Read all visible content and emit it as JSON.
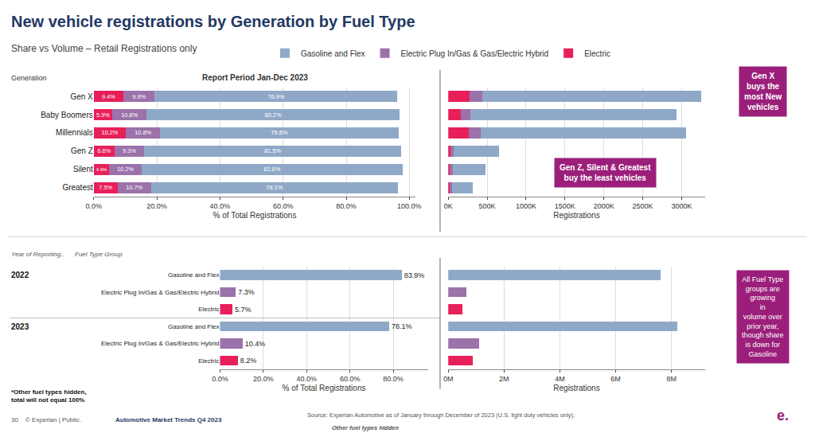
{
  "title": "New vehicle registrations by Generation by Fuel Type",
  "subtitle": "Share vs Volume – Retail Registrations only",
  "annotations": [
    "Gen X\nbuys the\nmost New\nvehicles",
    "Gen Z, Silent & Greatest\nbuy the least vehicles",
    "All Fuel Type\ngroups are\ngrowing\nin\nvolume over\nprior year,\nthough share\nis down for\nGasoline",
    "Year of Reporting..",
    "Fuel Type Group",
    "*Other fuel types hidden,\ntotal will not equal 100%",
    "30    © Experian | Public.",
    "Automotive Market Trends Q4 2023",
    "Source: Experian Automotive as of January through December of 2023 (U.S. light duty vehicles only);",
    "Other fuel types hidden",
    "e."
  ],
  "chart_data": [
    {
      "type": "bar",
      "orientation": "horizontal",
      "stacked": true,
      "title": "Report Period Jan-Dec 2023",
      "ylabel": "Generation",
      "xlabel": "% of Total Registrations",
      "categories": [
        "Gen X",
        "Baby Boomers",
        "Millennials",
        "Gen Z",
        "Silent",
        "Greatest"
      ],
      "series": [
        {
          "name": "Electric",
          "color": "#E8205A",
          "values": [
            9.4,
            5.9,
            10.2,
            6.6,
            4.9,
            7.5
          ],
          "value_labels": [
            "9.4%",
            "5.9%",
            "10.2%",
            "6.6%",
            "4.9%",
            "7.5%"
          ]
        },
        {
          "name": "Electric Plug In/Gas & Gas/Electric Hybrid",
          "color": "#9B72AA",
          "values": [
            9.9,
            10.8,
            10.8,
            9.3,
            10.2,
            10.7
          ],
          "value_labels": [
            "9.9%",
            "10.8%",
            "10.8%",
            "9.3%",
            "10.2%",
            "10.7%"
          ]
        },
        {
          "name": "Gasoline and Flex",
          "color": "#8FA8C8",
          "values": [
            76.9,
            80.2,
            75.6,
            81.5,
            82.8,
            78.1
          ],
          "value_labels": [
            "76.9%",
            "80.2%",
            "75.6%",
            "81.5%",
            "82.8%",
            "78.1%"
          ]
        }
      ],
      "xlim": [
        0,
        102
      ],
      "xticks": [
        {
          "value": 0,
          "label": "0.0%"
        },
        {
          "value": 20,
          "label": "20.0%"
        },
        {
          "value": 40,
          "label": "40.0%"
        },
        {
          "value": 60,
          "label": "60.0%"
        },
        {
          "value": 80,
          "label": "80.0%"
        },
        {
          "value": 100,
          "label": "100.0%"
        }
      ],
      "grid": true,
      "data_labels": true,
      "legend": "top"
    },
    {
      "type": "bar",
      "orientation": "horizontal",
      "stacked": true,
      "xlabel": "Registrations",
      "categories": [
        "Gen X",
        "Baby Boomers",
        "Millennials",
        "Gen Z",
        "Silent",
        "Greatest"
      ],
      "series": [
        {
          "name": "Electric",
          "color": "#E8205A",
          "values": [
            270000,
            160000,
            260000,
            28000,
            22000,
            18000
          ]
        },
        {
          "name": "Electric Plug In/Gas & Gas/Electric Hybrid",
          "color": "#9B72AA",
          "values": [
            165000,
            125000,
            155000,
            42000,
            33000,
            28000
          ]
        },
        {
          "name": "Gasoline and Flex",
          "color": "#8FA8C8",
          "values": [
            2820000,
            2650000,
            2640000,
            580000,
            420000,
            265000
          ]
        }
      ],
      "xlim": [
        0,
        3300000
      ],
      "xticks": [
        {
          "value": 0,
          "label": "0K"
        },
        {
          "value": 500000,
          "label": "500K"
        },
        {
          "value": 1000000,
          "label": "1000K"
        },
        {
          "value": 1500000,
          "label": "1500K"
        },
        {
          "value": 2000000,
          "label": "2000K"
        },
        {
          "value": 2500000,
          "label": "2500K"
        },
        {
          "value": 3000000,
          "label": "3000K"
        }
      ],
      "grid": true,
      "tick_labels": "x"
    },
    {
      "type": "bar",
      "orientation": "horizontal",
      "xlabel": "% of Total Registrations",
      "categories": [
        [
          "2022",
          "Gasoline and Flex"
        ],
        [
          "2022",
          "Electric Plug In/Gas & Gas/Electric Hybrid"
        ],
        [
          "2022",
          "Electric"
        ],
        [
          "2023",
          "Gasoline and Flex"
        ],
        [
          "2023",
          "Electric Plug In/Gas & Gas/Electric Hybrid"
        ],
        [
          "2023",
          "Electric"
        ]
      ],
      "values": [
        83.9,
        7.3,
        5.7,
        78.1,
        10.4,
        8.2
      ],
      "value_labels": [
        "83.9%",
        "7.3%",
        "5.7%",
        "78.1%",
        "10.4%",
        "8.2%"
      ],
      "colors": [
        "#8FA8C8",
        "#9B72AA",
        "#E8205A",
        "#8FA8C8",
        "#9B72AA",
        "#E8205A"
      ],
      "xlim": [
        0,
        96
      ],
      "xticks": [
        {
          "value": 0,
          "label": "0.0%"
        },
        {
          "value": 20,
          "label": "20.0%"
        },
        {
          "value": 40,
          "label": "40.0%"
        },
        {
          "value": 60,
          "label": "60.0%"
        },
        {
          "value": 80,
          "label": "80.0%"
        }
      ],
      "grid": true,
      "data_labels": true
    },
    {
      "type": "bar",
      "orientation": "horizontal",
      "xlabel": "Registrations",
      "categories": [
        [
          "2022",
          "Gasoline and Flex"
        ],
        [
          "2022",
          "Electric Plug In/Gas & Gas/Electric Hybrid"
        ],
        [
          "2022",
          "Electric"
        ],
        [
          "2023",
          "Gasoline and Flex"
        ],
        [
          "2023",
          "Electric Plug In/Gas & Gas/Electric Hybrid"
        ],
        [
          "2023",
          "Electric"
        ]
      ],
      "values": [
        7600000,
        660000,
        515000,
        8200000,
        1100000,
        870000
      ],
      "colors": [
        "#8FA8C8",
        "#9B72AA",
        "#E8205A",
        "#8FA8C8",
        "#9B72AA",
        "#E8205A"
      ],
      "xlim": [
        0,
        9200000
      ],
      "xticks": [
        {
          "value": 0,
          "label": "0M"
        },
        {
          "value": 2000000,
          "label": "2M"
        },
        {
          "value": 4000000,
          "label": "4M"
        },
        {
          "value": 6000000,
          "label": "6M"
        },
        {
          "value": 8000000,
          "label": "8M"
        }
      ],
      "grid": true,
      "tick_labels": "x"
    }
  ]
}
